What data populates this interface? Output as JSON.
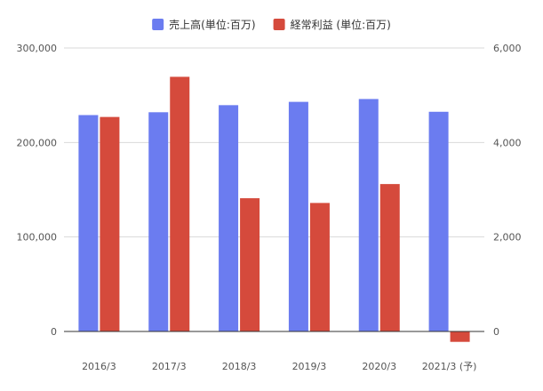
{
  "chart_data": {
    "type": "bar",
    "categories": [
      "2016/3",
      "2017/3",
      "2018/3",
      "2019/3",
      "2020/3",
      "2021/3 (予)"
    ],
    "series": [
      {
        "name": "売上高(単位:百万)",
        "axis": "left",
        "color": "#6b7cf0",
        "values": [
          229000,
          232000,
          239500,
          243000,
          246000,
          232500
        ]
      },
      {
        "name": "経常利益 (単位:百万)",
        "axis": "right",
        "color": "#d54a3c",
        "values": [
          4540,
          5390,
          2820,
          2720,
          3120,
          -220
        ]
      }
    ],
    "y_left": {
      "ylim": [
        0,
        300000
      ],
      "ticks": [
        "0",
        "100,000",
        "200,000",
        "300,000"
      ],
      "tick_values": [
        0,
        100000,
        200000,
        300000
      ]
    },
    "y_right": {
      "ylim": [
        0,
        6000
      ],
      "ticks": [
        "0",
        "2,000",
        "4,000",
        "6,000"
      ],
      "tick_values": [
        0,
        2000,
        4000,
        6000
      ]
    },
    "grid": true,
    "legend_position": "top-center"
  }
}
